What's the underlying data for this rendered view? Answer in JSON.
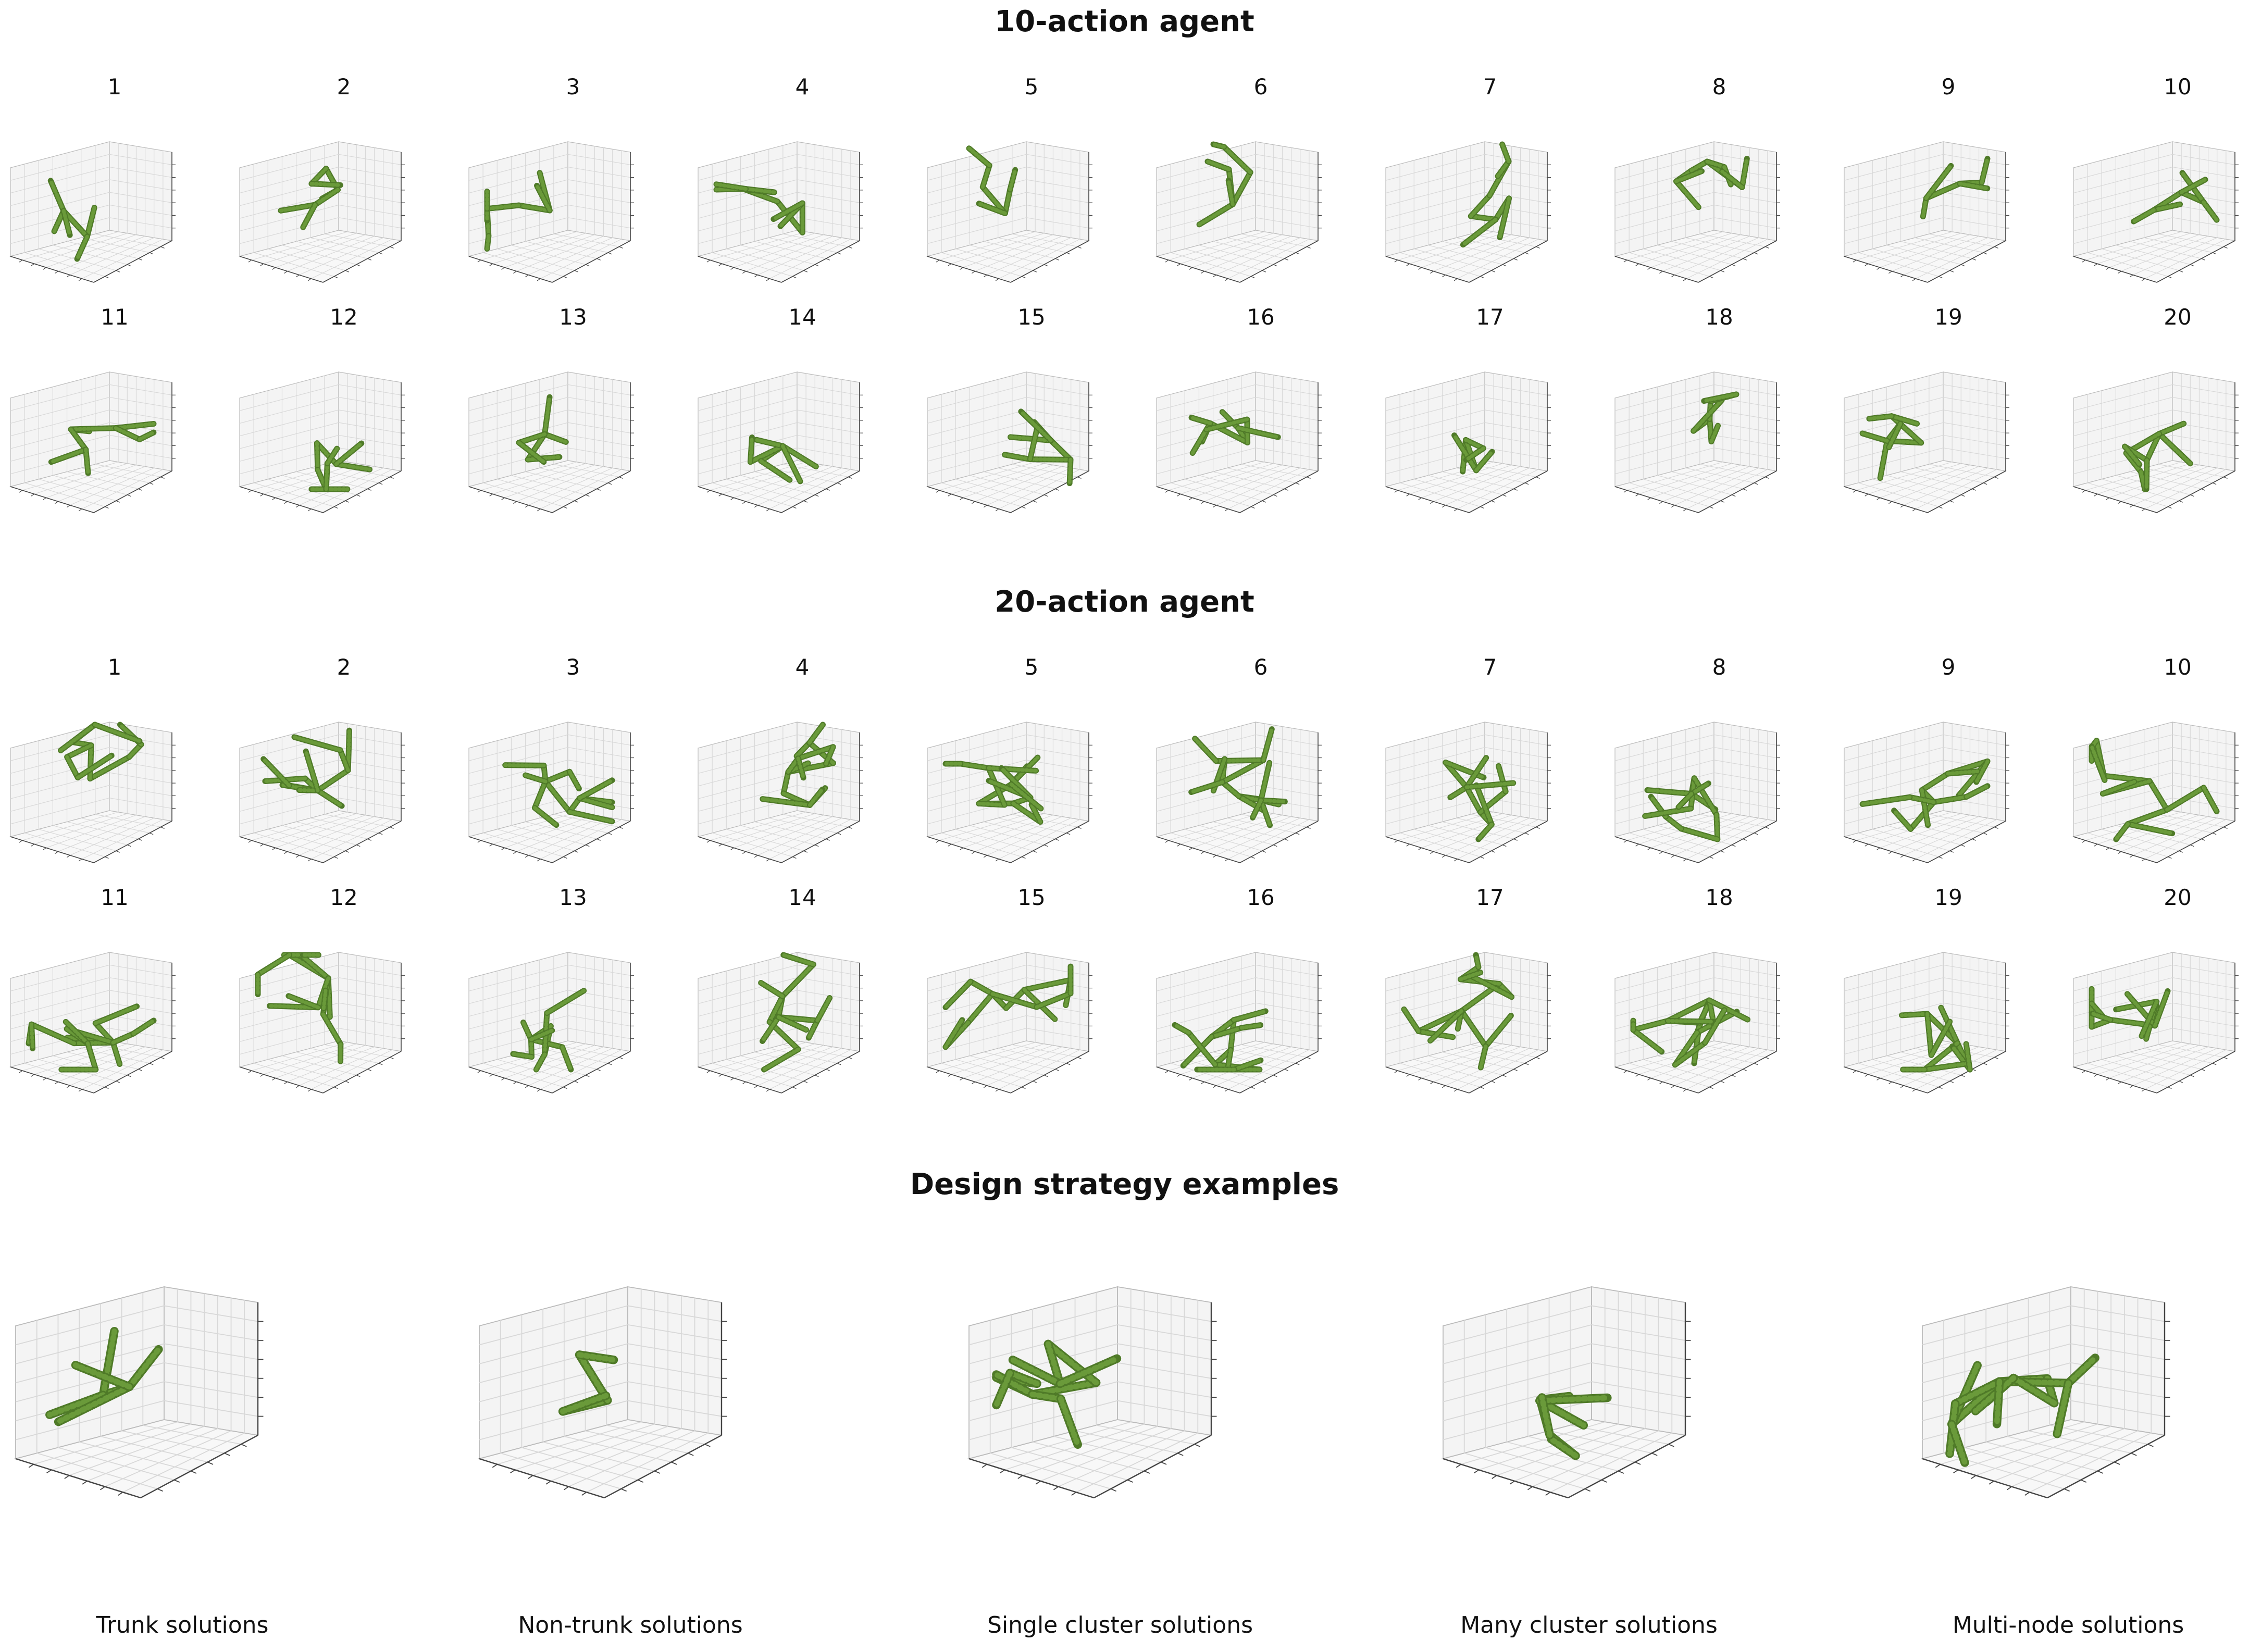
{
  "sections": [
    {
      "title": "10-action agent",
      "numbers": [
        "1",
        "2",
        "3",
        "4",
        "5",
        "6",
        "7",
        "8",
        "9",
        "10",
        "11",
        "12",
        "13",
        "14",
        "15",
        "16",
        "17",
        "18",
        "19",
        "20"
      ]
    },
    {
      "title": "20-action agent",
      "numbers": [
        "1",
        "2",
        "3",
        "4",
        "5",
        "6",
        "7",
        "8",
        "9",
        "10",
        "11",
        "12",
        "13",
        "14",
        "15",
        "16",
        "17",
        "18",
        "19",
        "20"
      ]
    }
  ],
  "examples": {
    "title": "Design strategy examples",
    "captions": [
      "Trunk solutions",
      "Non-trunk solutions",
      "Single cluster solutions",
      "Many cluster solutions",
      "Multi-node solutions"
    ]
  },
  "colors": {
    "structure": "#6a9a3a",
    "structure_dark": "#4f7a28",
    "grid": "#d8d8d8",
    "pane": "#f4f4f4"
  }
}
